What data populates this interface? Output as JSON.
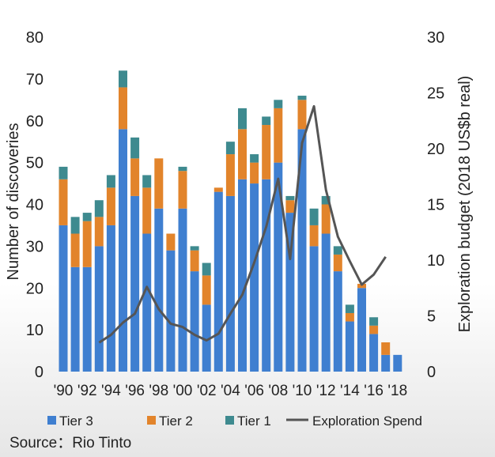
{
  "chart_data": {
    "type": "bar",
    "stacked": true,
    "categories": [
      "1990",
      "1991",
      "1992",
      "1993",
      "1994",
      "1995",
      "1996",
      "1997",
      "1998",
      "1999",
      "2000",
      "2001",
      "2002",
      "2003",
      "2004",
      "2005",
      "2006",
      "2007",
      "2008",
      "2009",
      "2010",
      "2011",
      "2012",
      "2013",
      "2014",
      "2015",
      "2016",
      "2017",
      "2018"
    ],
    "x_tick_labels": [
      "'90",
      "'92",
      "'94",
      "'96",
      "'98",
      "'00",
      "'02",
      "'04",
      "'06",
      "'08",
      "'10",
      "'12",
      "'14",
      "'16",
      "'18"
    ],
    "series": [
      {
        "name": "Tier 3",
        "color": "#3f7fd0",
        "values": [
          35,
          25,
          25,
          30,
          35,
          58,
          42,
          33,
          39,
          29,
          39,
          24,
          16,
          43,
          42,
          46,
          45,
          46,
          50,
          38,
          58,
          30,
          33,
          24,
          12,
          20,
          9,
          4,
          4
        ]
      },
      {
        "name": "Tier 2",
        "color": "#e2842b",
        "values": [
          11,
          8,
          11,
          7,
          9,
          10,
          9,
          11,
          12,
          4,
          9,
          5,
          7,
          1,
          10,
          12,
          5,
          13,
          13,
          3,
          7,
          5,
          7,
          4,
          2,
          1,
          2,
          3,
          0
        ]
      },
      {
        "name": "Tier 1",
        "color": "#3e8a8f",
        "values": [
          3,
          4,
          2,
          4,
          3,
          4,
          5,
          3,
          0,
          0,
          1,
          1,
          3,
          0,
          3,
          5,
          2,
          2,
          2,
          1,
          1,
          4,
          2,
          2,
          2,
          0,
          2,
          0,
          0
        ]
      }
    ],
    "line_series": {
      "name": "Exploration Spend",
      "color": "#555555",
      "axis": "right",
      "values": [
        null,
        null,
        null,
        2.6,
        3.3,
        4.4,
        5.2,
        7.6,
        5.6,
        4.3,
        4.0,
        3.3,
        2.8,
        3.4,
        5.2,
        6.9,
        9.8,
        13.0,
        17.3,
        10.1,
        20.5,
        23.8,
        16.3,
        12.1,
        9.9,
        7.8,
        8.7,
        10.3,
        null
      ]
    },
    "y_left": {
      "label": "Number of discoveries",
      "min": 0,
      "max": 80,
      "ticks": [
        0,
        10,
        20,
        30,
        40,
        50,
        60,
        70,
        80
      ]
    },
    "y_right": {
      "label": "Exploration budget (2018 US$b real)",
      "min": 0,
      "max": 30,
      "ticks": [
        0,
        5,
        10,
        15,
        20,
        25,
        30
      ]
    },
    "legend": [
      "Tier 3",
      "Tier 2",
      "Tier 1",
      "Exploration Spend"
    ],
    "legend_position": "bottom"
  },
  "source": "Source：Rio Tinto"
}
